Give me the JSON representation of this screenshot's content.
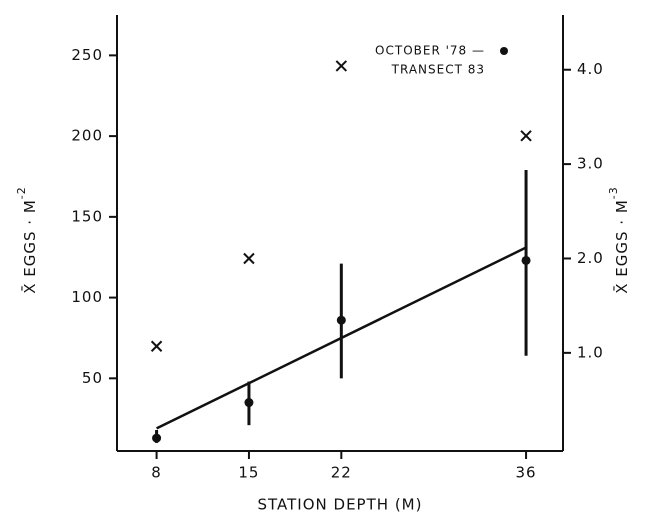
{
  "chart_data": {
    "type": "scatter",
    "x_label": "STATION DEPTH (M)",
    "y_label": {
      "text": "X̄ EGGS · M",
      "exponent": "-2"
    },
    "y2_label": {
      "text": "X̄ EGGS · M",
      "exponent": "-3"
    },
    "annotation": [
      "OCTOBER '78 —",
      "TRANSECT 83"
    ],
    "x": [
      8,
      15,
      22,
      36
    ],
    "xlim": [
      5,
      38.8
    ],
    "xticks": [
      8,
      15,
      22,
      36
    ],
    "ylim": [
      5,
      275
    ],
    "yticks": [
      50,
      100,
      150,
      200,
      250
    ],
    "y2lim": [
      -0.04,
      4.58
    ],
    "y2ticks": [
      {
        "value": 1,
        "label": "1.0"
      },
      {
        "value": 2,
        "label": "2.0"
      },
      {
        "value": 3,
        "label": "3.0"
      },
      {
        "value": 4,
        "label": "4.0"
      }
    ],
    "series": [
      {
        "marker": "dot",
        "color": "#111111",
        "values": [
          13,
          35,
          86,
          123
        ],
        "error_low": [
          10,
          21,
          50,
          64
        ],
        "error_high": [
          18,
          48,
          121,
          179
        ]
      },
      {
        "marker": "cross",
        "color": "#111111",
        "axis": "y2",
        "values": [
          1.07,
          2.0,
          4.04,
          3.3
        ]
      }
    ],
    "fit": {
      "color": "#111111",
      "x": [
        8,
        36
      ],
      "values": [
        19,
        131
      ]
    }
  }
}
